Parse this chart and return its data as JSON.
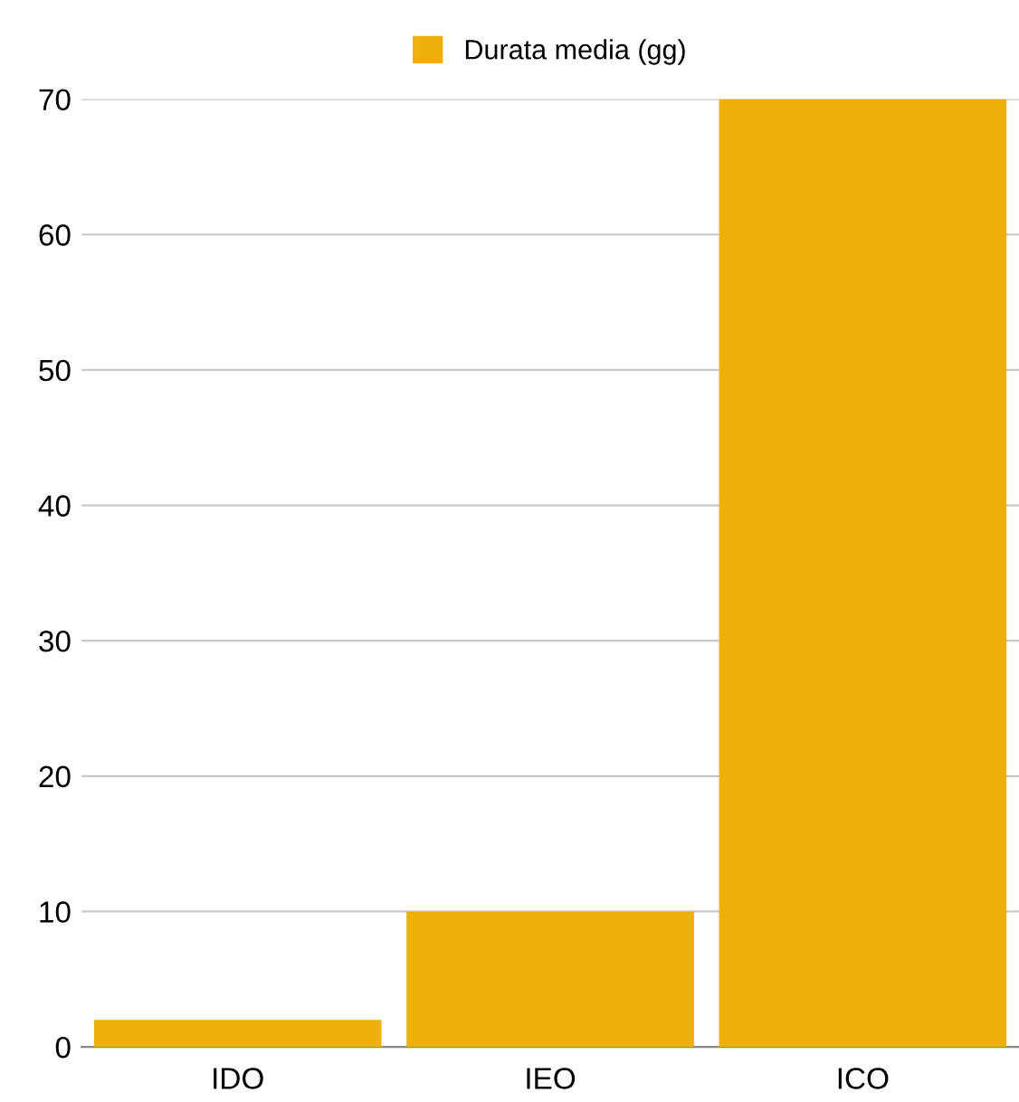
{
  "chart_data": {
    "type": "bar",
    "categories": [
      "IDO",
      "IEO",
      "ICO"
    ],
    "series": [
      {
        "name": "Durata media (gg)",
        "color": "#f0b00c",
        "values": [
          2,
          10,
          70
        ]
      }
    ],
    "ylim": [
      0,
      70
    ],
    "yticks": [
      0,
      10,
      20,
      30,
      40,
      50,
      60,
      70
    ],
    "grid": "y",
    "legend": "top"
  }
}
